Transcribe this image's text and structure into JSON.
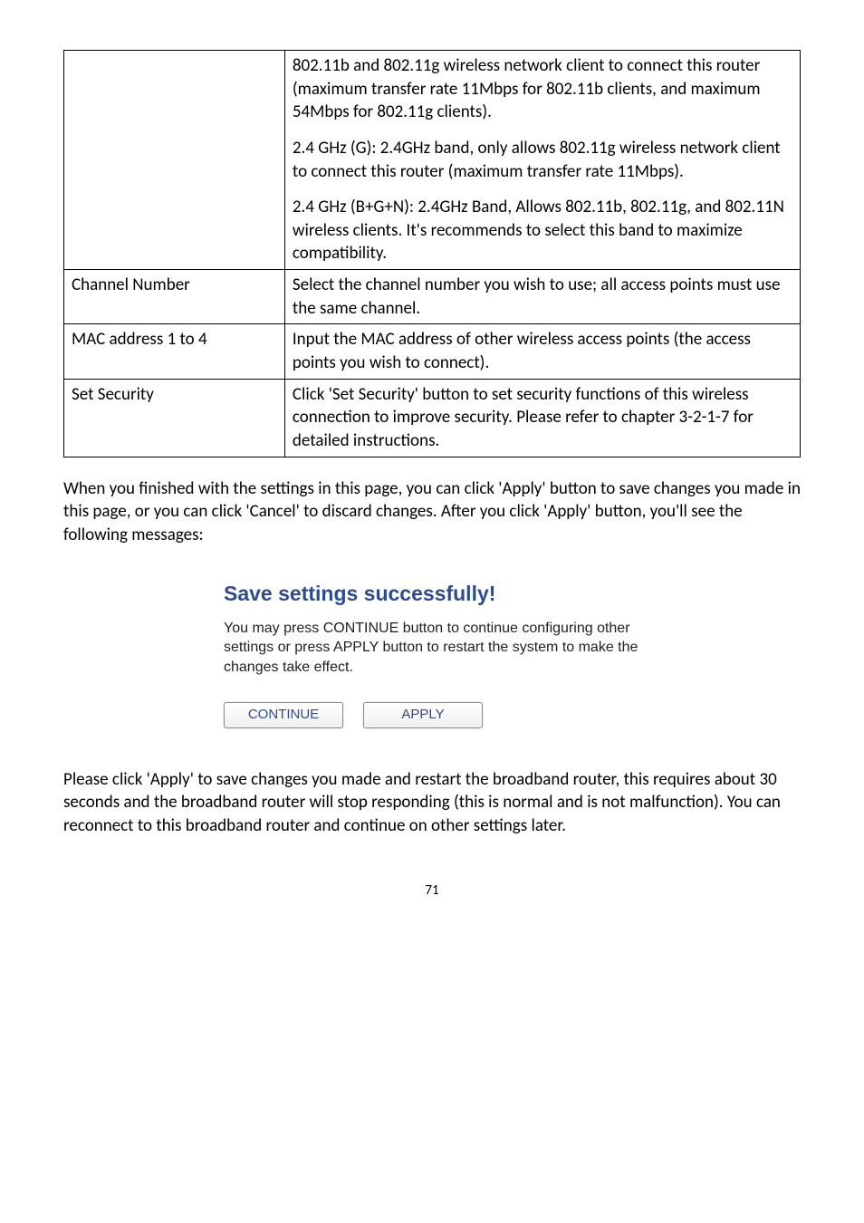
{
  "table": {
    "rows": [
      {
        "label": "",
        "blocks": [
          "802.11b and 802.11g wireless network client to connect this router (maximum transfer rate 11Mbps for 802.11b clients, and maximum 54Mbps for 802.11g clients).",
          "2.4 GHz (G): 2.4GHz band, only allows 802.11g wireless network client to connect this router (maximum transfer rate 11Mbps).",
          "2.4 GHz (B+G+N): 2.4GHz Band, Allows 802.11b, 802.11g, and 802.11N wireless clients. It's recommends to select this band to maximize compatibility."
        ]
      },
      {
        "label": "Channel Number",
        "blocks": [
          "Select the channel number you wish to use; all access points must use the same channel."
        ]
      },
      {
        "label": "MAC address 1 to 4",
        "blocks": [
          "Input the MAC address of other wireless access points (the access points you wish to connect)."
        ]
      },
      {
        "label": "Set Security",
        "blocks": [
          "Click 'Set Security' button to set security functions of this wireless connection to improve security. Please refer to chapter 3-2-1-7 for detailed instructions."
        ]
      }
    ]
  },
  "para1": "When you finished with the settings in this page, you can click 'Apply' button to save changes you made in this page, or you can click 'Cancel' to discard changes. After you click 'Apply' button, you'll see the following messages:",
  "dialog": {
    "title": "Save settings successfully!",
    "text": "You may press CONTINUE button to continue configuring other settings or press APPLY button to restart the system to make the changes take effect.",
    "continue_label": "CONTINUE",
    "apply_label": "APPLY"
  },
  "para2": "Please click 'Apply' to save changes you made and restart the broadband router, this requires about 30 seconds and the broadband router will stop responding (this is normal and is not malfunction). You can reconnect to this broadband router and continue on other settings later.",
  "page_number": "71"
}
